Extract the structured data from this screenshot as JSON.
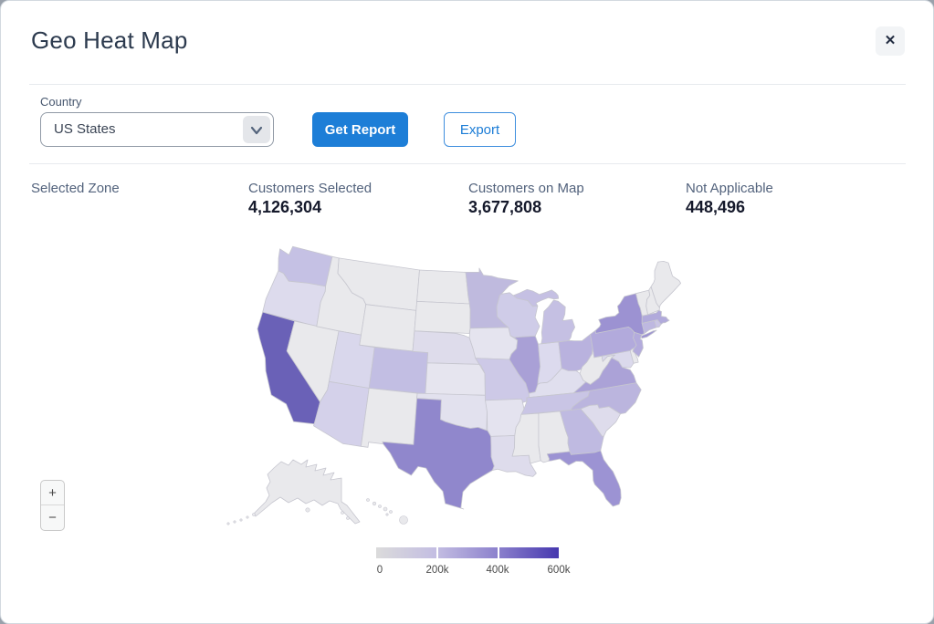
{
  "window": {
    "title": "Geo Heat Map",
    "close_label": "✕"
  },
  "toolbar": {
    "country_label": "Country",
    "country_value": "US States",
    "get_report_label": "Get Report",
    "export_label": "Export"
  },
  "stats": {
    "selected_zone_label": "Selected Zone",
    "items": [
      {
        "label": "Customers Selected",
        "value": "4,126,304"
      },
      {
        "label": "Customers on Map",
        "value": "3,677,808"
      },
      {
        "label": "Not Applicable",
        "value": "448,496"
      }
    ]
  },
  "map": {
    "zoom_in_label": "+",
    "zoom_out_label": "−",
    "default_fill": "#e9e9ec",
    "border_color": "#c6c6cf",
    "state_fills": {
      "CA": "#6a61b7",
      "TX": "#9087cc",
      "FL": "#9c93d3",
      "NY": "#9c92d2",
      "IL": "#a9a0d6",
      "VA": "#aba2d7",
      "PA": "#b2aadc",
      "MA": "#b1aadb",
      "NJ": "#b3abdc",
      "OH": "#b9b2de",
      "CT": "#beb8e0",
      "MN": "#bfbade",
      "GA": "#bfbae1",
      "NC": "#bbb5de",
      "CO": "#c2bee3",
      "WA": "#c5c1e4",
      "MI": "#c5c0e3",
      "TN": "#c9c5e5",
      "MO": "#cdc9e7",
      "WI": "#cfcce8",
      "RI": "#cac5e5",
      "AZ": "#d4d1ea",
      "MD": "#dbd9ec",
      "IN": "#dcdaee",
      "UT": "#d9d7ec",
      "OR": "#dddbed",
      "LA": "#dedcec",
      "NE": "#dedceb",
      "SC": "#dedcec",
      "OK": "#e2e1ee",
      "KY": "#e0dfee",
      "IA": "#e5e4ef",
      "AR": "#e4e3ef",
      "KS": "#e6e5ef"
    }
  },
  "legend": {
    "ticks": [
      "0",
      "200k",
      "400k",
      "600k"
    ],
    "gradient": [
      "#dbdbdb",
      "#c3bde2",
      "#8d82cd",
      "#4638af"
    ]
  }
}
